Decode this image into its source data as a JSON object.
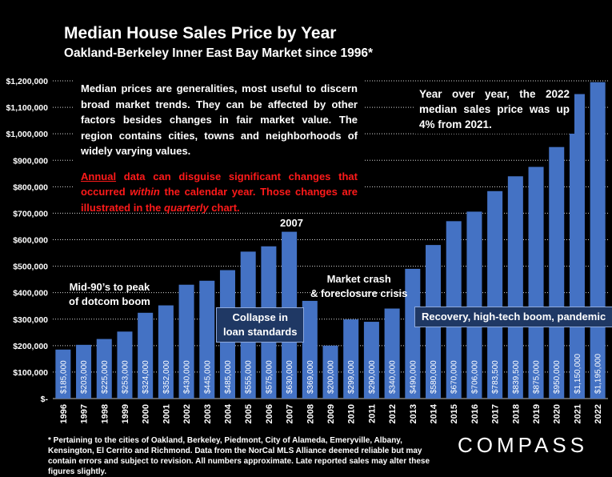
{
  "title": "Median House Sales Price by Year",
  "subtitle": "Oakland-Berkeley Inner East Bay Market since 1996*",
  "notes": {
    "line1": "Median prices are generalities, most useful to discern broad market trends. They can be affected by other factors besides changes in fair market value. The region contains cities, towns and neighborhoods of widely varying values.",
    "red_annual": "Annual",
    "red_part1": " data can disguise significant changes that occurred ",
    "red_within": "within",
    "red_part2": " the calendar year. Those changes are illustrated in the ",
    "red_quarterly": "quarterly",
    "red_part3": " chart."
  },
  "yoy_note": "Year over year, the 2022 median sales price was up 4% from 2021.",
  "annotations": {
    "peak_2007": "2007",
    "dotcom_line1": "Mid-90’s to peak",
    "dotcom_line2": "of dotcom boom",
    "collapse_line1": "Collapse in",
    "collapse_line2": "loan standards",
    "crash_line1": "Market crash",
    "crash_line2": "& foreclosure crisis",
    "recovery": "Recovery, high-tech boom, pandemic"
  },
  "footnote": "* Pertaining to the cities of Oakland, Berkeley, Piedmont, City of Alameda, Emeryville, Albany, Kensington, El Cerrito and Richmond. Data from the NorCal MLS Alliance deemed reliable but may contain errors and subject to revision. All numbers approximate. Late reported sales may alter these figures slightly.",
  "logo": "COMPASS",
  "colors": {
    "bar": "#4472c4",
    "background": "#000000",
    "red_text": "#ff1a1a",
    "gridline": "#ffffff"
  },
  "chart_data": {
    "type": "bar",
    "title": "Median House Sales Price by Year",
    "categories": [
      "1996",
      "1997",
      "1998",
      "1999",
      "2000",
      "2001",
      "2002",
      "2003",
      "2004",
      "2005",
      "2006",
      "2007",
      "2008",
      "2009",
      "2010",
      "2011",
      "2012",
      "2013",
      "2014",
      "2015",
      "2016",
      "2017",
      "2018",
      "2019",
      "2020",
      "2021",
      "2022"
    ],
    "values": [
      185000,
      203000,
      225000,
      253000,
      324000,
      352000,
      430000,
      445000,
      485000,
      555000,
      575000,
      630000,
      369000,
      200000,
      299000,
      290000,
      340000,
      490000,
      580000,
      670000,
      706000,
      783500,
      839500,
      875000,
      950000,
      1150000,
      1195000
    ],
    "data_labels": [
      "$185,000",
      "$203,000",
      "$225,000",
      "$253,000",
      "$324,000",
      "$352,000",
      "$430,000",
      "$445,000",
      "$485,000",
      "$555,000",
      "$575,000",
      "$630,000",
      "$369,000",
      "$200,000",
      "$299,000",
      "$290,000",
      "$340,000",
      "$490,000",
      "$580,000",
      "$670,000",
      "$706,000",
      "$783,500",
      "$839,500",
      "$875,000",
      "$950,000",
      "$1,150,000",
      "$1,195,000"
    ],
    "ylim": [
      0,
      1200000
    ],
    "yticks": [
      0,
      100000,
      200000,
      300000,
      400000,
      500000,
      600000,
      700000,
      800000,
      900000,
      1000000,
      1100000,
      1200000
    ],
    "ytick_labels": [
      "$-",
      "$100,000",
      "$200,000",
      "$300,000",
      "$400,000",
      "$500,000",
      "$600,000",
      "$700,000",
      "$800,000",
      "$900,000",
      "$1,000,000",
      "$1,100,000",
      "$1,200,000"
    ],
    "xlabel": "",
    "ylabel": "",
    "grid": true,
    "legend": "none"
  }
}
